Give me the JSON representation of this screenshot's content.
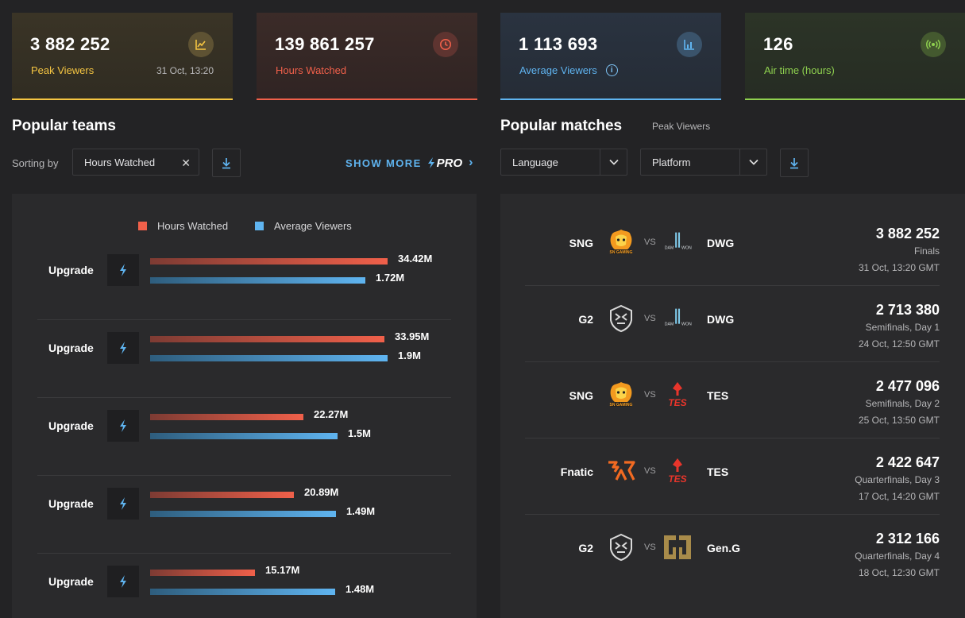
{
  "stats": [
    {
      "value": "3 882 252",
      "label": "Peak Viewers",
      "timestamp": "31 Oct, 13:20",
      "icon": "chart-icon",
      "color": "#f5c542"
    },
    {
      "value": "139 861 257",
      "label": "Hours Watched",
      "icon": "clock-icon",
      "color": "#f0604a"
    },
    {
      "value": "1 113 693",
      "label": "Average Viewers",
      "icon": "bar-chart-icon",
      "info": "i",
      "color": "#5fb4f0"
    },
    {
      "value": "126",
      "label": "Air time (hours)",
      "icon": "broadcast-icon",
      "color": "#8fd14f"
    }
  ],
  "teams": {
    "title": "Popular teams",
    "sorting_label": "Sorting by",
    "sort_value": "Hours Watched",
    "clear_glyph": "✕",
    "show_more": "SHOW MORE",
    "pro": "PRO",
    "chevron": "›",
    "legend": {
      "hours": "Hours Watched",
      "avg": "Average Viewers"
    },
    "hw_max": 34.42,
    "av_max": 1.9,
    "rows": [
      {
        "name": "Upgrade",
        "hw": 34.42,
        "hw_label": "34.42M",
        "av": 1.72,
        "av_label": "1.72M"
      },
      {
        "name": "Upgrade",
        "hw": 33.95,
        "hw_label": "33.95M",
        "av": 1.9,
        "av_label": "1.9M"
      },
      {
        "name": "Upgrade",
        "hw": 22.27,
        "hw_label": "22.27M",
        "av": 1.5,
        "av_label": "1.5M"
      },
      {
        "name": "Upgrade",
        "hw": 20.89,
        "hw_label": "20.89M",
        "av": 1.49,
        "av_label": "1.49M"
      },
      {
        "name": "Upgrade",
        "hw": 15.17,
        "hw_label": "15.17M",
        "av": 1.48,
        "av_label": "1.48M"
      }
    ]
  },
  "matches": {
    "title": "Popular matches",
    "subtitle": "Peak Viewers",
    "filters": {
      "language": "Language",
      "platform": "Platform"
    },
    "vs": "VS",
    "rows": [
      {
        "team_a": "SNG",
        "logo_a": "sn-gaming-logo",
        "team_b": "DWG",
        "logo_b": "damwon-logo",
        "viewers": "3 882 252",
        "stage": "Finals",
        "time": "31 Oct, 13:20 GMT"
      },
      {
        "team_a": "G2",
        "logo_a": "g2-logo",
        "team_b": "DWG",
        "logo_b": "damwon-logo",
        "viewers": "2 713 380",
        "stage": "Semifinals, Day 1",
        "time": "24 Oct, 12:50 GMT"
      },
      {
        "team_a": "SNG",
        "logo_a": "sn-gaming-logo",
        "team_b": "TES",
        "logo_b": "tes-logo",
        "viewers": "2 477 096",
        "stage": "Semifinals, Day 2",
        "time": "25 Oct, 13:50 GMT"
      },
      {
        "team_a": "Fnatic",
        "logo_a": "fnatic-logo",
        "team_b": "TES",
        "logo_b": "tes-logo",
        "viewers": "2 422 647",
        "stage": "Quarterfinals, Day 3",
        "time": "17 Oct, 14:20 GMT"
      },
      {
        "team_a": "G2",
        "logo_a": "g2-logo",
        "team_b": "Gen.G",
        "logo_b": "geng-logo",
        "viewers": "2 312 166",
        "stage": "Quarterfinals, Day 4",
        "time": "18 Oct, 12:30 GMT"
      }
    ]
  }
}
